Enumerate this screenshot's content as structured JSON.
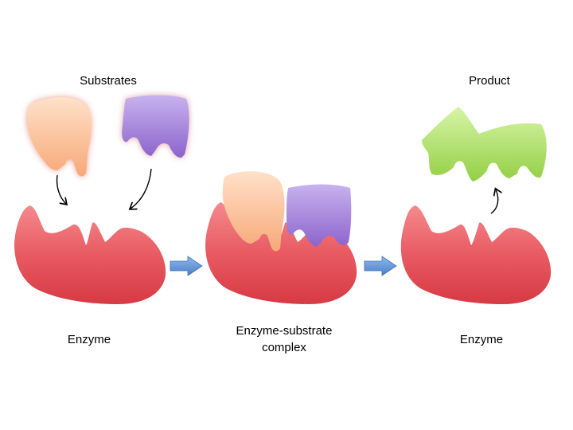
{
  "labels": {
    "substrates": "Substrates",
    "product": "Product",
    "enzyme_left": "Enzyme",
    "complex_line1": "Enzyme-substrate",
    "complex_line2": "complex",
    "enzyme_right": "Enzyme"
  },
  "colors": {
    "enzyme": "#e85a62",
    "substrate_orange": "#f9b88e",
    "substrate_purple": "#a07fd6",
    "product": "#a7dc5a",
    "process_arrow": "#5a8fd6"
  }
}
